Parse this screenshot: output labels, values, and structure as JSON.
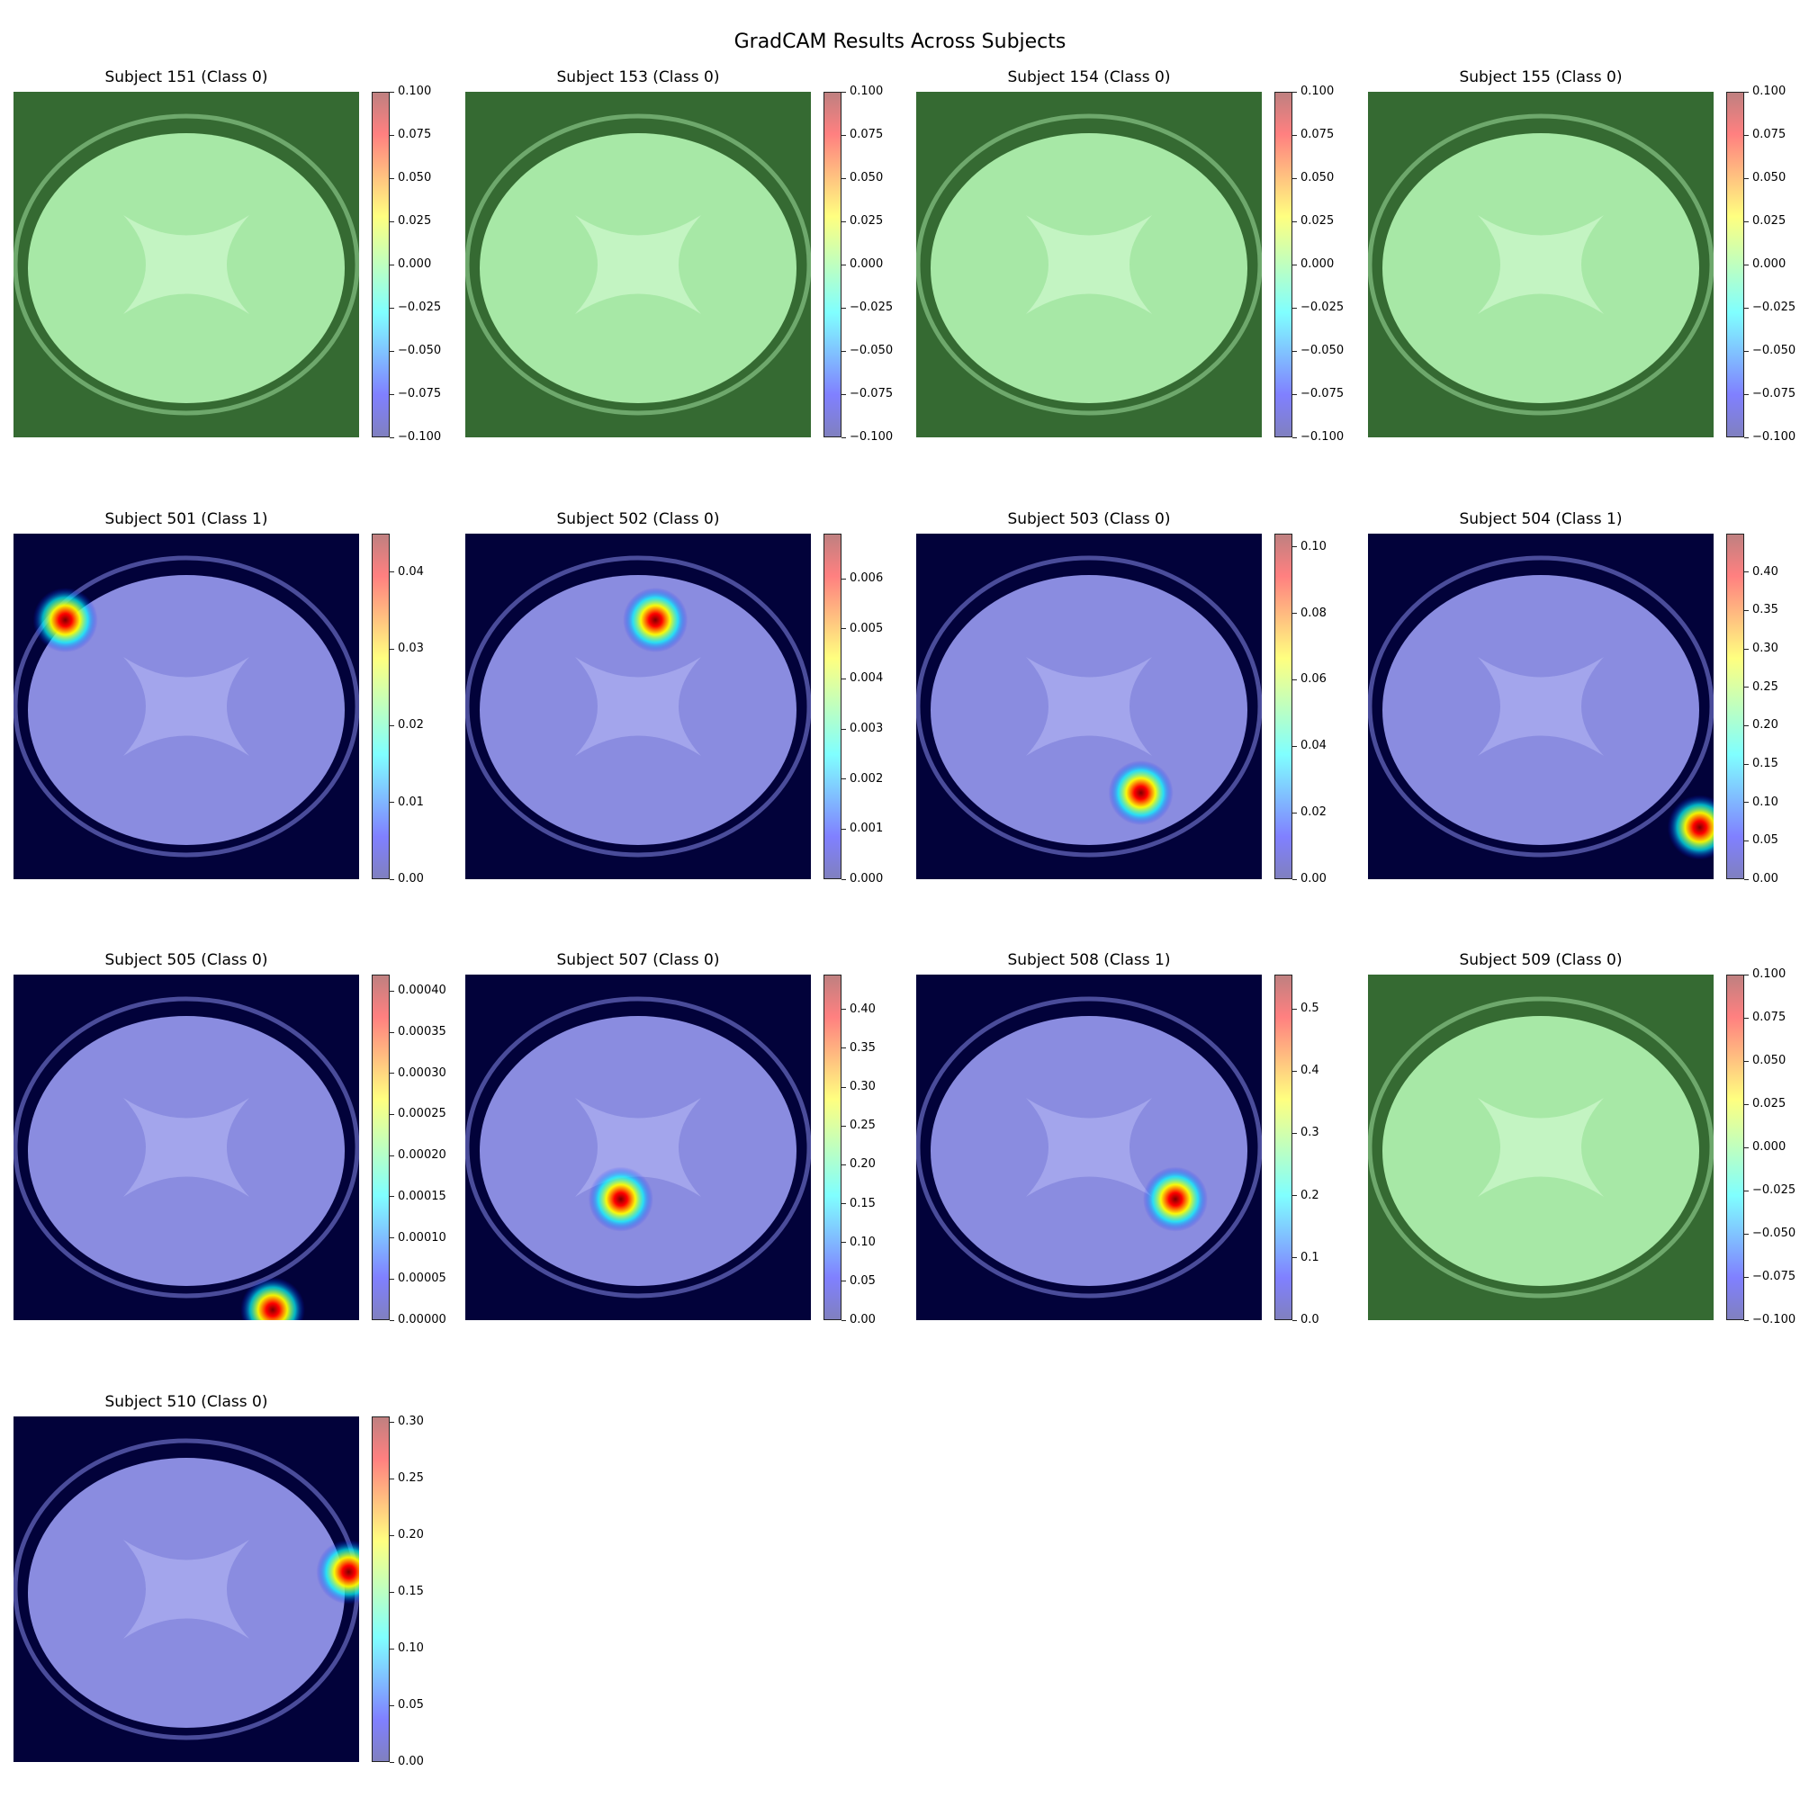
{
  "title": "GradCAM Results Across Subjects",
  "chart_data": {
    "type": "heatmap",
    "title": "GradCAM Results Across Subjects",
    "layout": "4 columns x 4 rows",
    "colormap": "jet",
    "panels": [
      {
        "title": "Subject 151 (Class 0)",
        "range": [
          -0.1,
          0.1
        ],
        "overlay": "uniform",
        "ticks": [
          "0.100",
          "0.075",
          "0.050",
          "0.025",
          "0.000",
          "−0.025",
          "−0.050",
          "−0.075",
          "−0.100"
        ]
      },
      {
        "title": "Subject 153 (Class 0)",
        "range": [
          -0.1,
          0.1
        ],
        "overlay": "uniform",
        "ticks": [
          "0.100",
          "0.075",
          "0.050",
          "0.025",
          "0.000",
          "−0.025",
          "−0.050",
          "−0.075",
          "−0.100"
        ]
      },
      {
        "title": "Subject 154 (Class 0)",
        "range": [
          -0.1,
          0.1
        ],
        "overlay": "uniform",
        "ticks": [
          "0.100",
          "0.075",
          "0.050",
          "0.025",
          "0.000",
          "−0.025",
          "−0.050",
          "−0.075",
          "−0.100"
        ]
      },
      {
        "title": "Subject 155 (Class 0)",
        "range": [
          -0.1,
          0.1
        ],
        "overlay": "uniform",
        "ticks": [
          "0.100",
          "0.075",
          "0.050",
          "0.025",
          "0.000",
          "−0.025",
          "−0.050",
          "−0.075",
          "−0.100"
        ]
      },
      {
        "title": "Subject 501 (Class 1)",
        "range": [
          0,
          0.045
        ],
        "overlay": "hotspot",
        "hotspot": [
          0.15,
          0.25
        ],
        "ticks": [
          "0.04",
          "0.03",
          "0.02",
          "0.01",
          "0.00"
        ]
      },
      {
        "title": "Subject 502 (Class 0)",
        "range": [
          0,
          0.0069
        ],
        "overlay": "hotspot",
        "hotspot": [
          0.55,
          0.25
        ],
        "ticks": [
          "0.006",
          "0.005",
          "0.004",
          "0.003",
          "0.002",
          "0.001",
          "0.000"
        ]
      },
      {
        "title": "Subject 503 (Class 0)",
        "range": [
          0,
          0.104
        ],
        "overlay": "hotspot",
        "hotspot": [
          0.65,
          0.75
        ],
        "ticks": [
          "0.10",
          "0.08",
          "0.06",
          "0.04",
          "0.02",
          "0.00"
        ]
      },
      {
        "title": "Subject 504 (Class 1)",
        "range": [
          0,
          0.45
        ],
        "overlay": "hotspot",
        "hotspot": [
          0.96,
          0.85
        ],
        "ticks": [
          "0.40",
          "0.35",
          "0.30",
          "0.25",
          "0.20",
          "0.15",
          "0.10",
          "0.05",
          "0.00"
        ]
      },
      {
        "title": "Subject 505 (Class 0)",
        "range": [
          0,
          0.00042
        ],
        "overlay": "hotspot",
        "hotspot": [
          0.75,
          0.97
        ],
        "ticks": [
          "0.00040",
          "0.00035",
          "0.00030",
          "0.00025",
          "0.00020",
          "0.00015",
          "0.00010",
          "0.00005",
          "0.00000"
        ]
      },
      {
        "title": "Subject 507 (Class 0)",
        "range": [
          0,
          0.445
        ],
        "overlay": "hotspot",
        "hotspot": [
          0.45,
          0.65
        ],
        "ticks": [
          "0.40",
          "0.35",
          "0.30",
          "0.25",
          "0.20",
          "0.15",
          "0.10",
          "0.05",
          "0.00"
        ]
      },
      {
        "title": "Subject 508 (Class 1)",
        "range": [
          0,
          0.555
        ],
        "overlay": "hotspot",
        "hotspot": [
          0.75,
          0.65
        ],
        "ticks": [
          "0.5",
          "0.4",
          "0.3",
          "0.2",
          "0.1",
          "0.0"
        ]
      },
      {
        "title": "Subject 509 (Class 0)",
        "range": [
          -0.1,
          0.1
        ],
        "overlay": "uniform",
        "ticks": [
          "0.100",
          "0.075",
          "0.050",
          "0.025",
          "0.000",
          "−0.025",
          "−0.050",
          "−0.075",
          "−0.100"
        ]
      },
      {
        "title": "Subject 510 (Class 0)",
        "range": [
          0,
          0.305
        ],
        "overlay": "hotspot",
        "hotspot": [
          0.97,
          0.45
        ],
        "ticks": [
          "0.30",
          "0.25",
          "0.20",
          "0.15",
          "0.10",
          "0.05",
          "0.00"
        ]
      }
    ]
  }
}
